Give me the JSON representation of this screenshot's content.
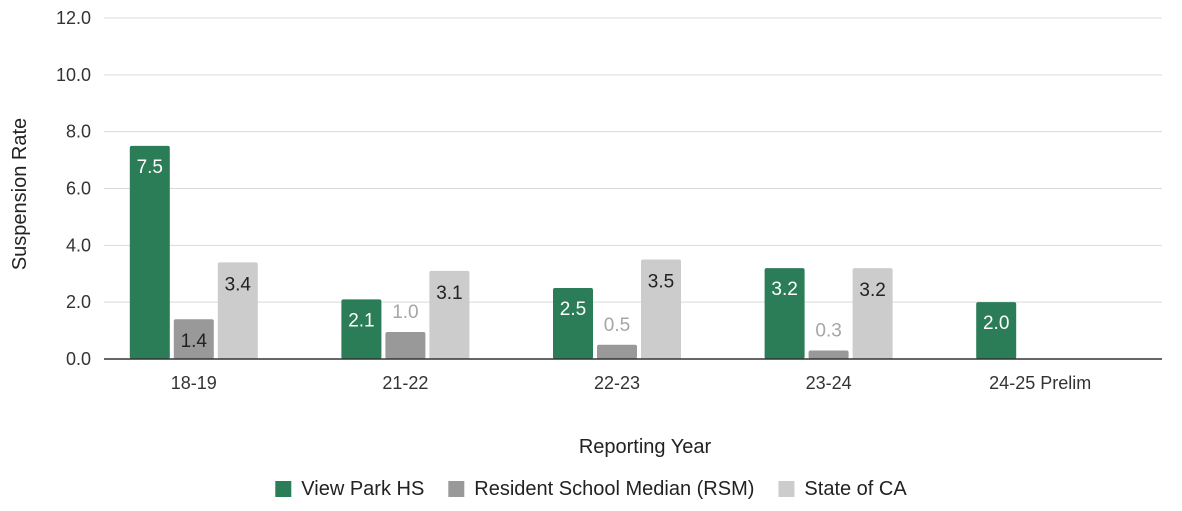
{
  "chart_data": {
    "type": "bar",
    "xlabel": "Reporting Year",
    "ylabel": "Suspension Rate",
    "ylim": [
      0,
      12
    ],
    "yticks": [
      "0.0",
      "2.0",
      "4.0",
      "6.0",
      "8.0",
      "10.0",
      "12.0"
    ],
    "grid": true,
    "legend_position": "bottom",
    "categories": [
      "18-19",
      "21-22",
      "22-23",
      "23-24",
      "24-25 Prelim"
    ],
    "series": [
      {
        "name": "View Park HS",
        "color": "#2b7d57",
        "values": [
          7.5,
          2.1,
          2.5,
          3.2,
          2.0
        ],
        "labels": [
          "7.5",
          "2.1",
          "2.5",
          "3.2",
          "2.0"
        ]
      },
      {
        "name": "Resident School Median (RSM)",
        "color": "#999999",
        "values": [
          1.4,
          0.95,
          0.5,
          0.3,
          null
        ],
        "labels": [
          "1.4",
          "1.0",
          "0.5",
          "0.3",
          ""
        ]
      },
      {
        "name": "State of CA",
        "color": "#cccccc",
        "values": [
          3.4,
          3.1,
          3.5,
          3.2,
          null
        ],
        "labels": [
          "3.4",
          "3.1",
          "3.5",
          "3.2",
          ""
        ]
      }
    ]
  }
}
